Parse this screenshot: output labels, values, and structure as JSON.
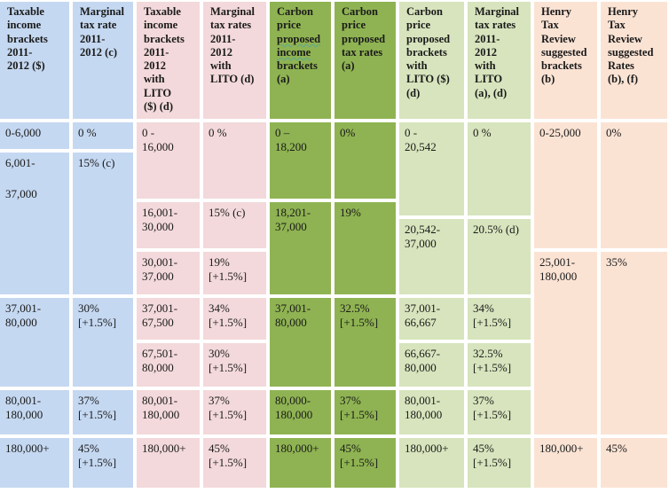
{
  "colors": {
    "blue": "#c5d8f1",
    "pink": "#f3d9db",
    "green_dark": "#8fb352",
    "green_light": "#d7e4bd",
    "peach": "#fbe3d4"
  },
  "headers": [
    [
      "Taxable",
      "income",
      "brackets",
      "2011-",
      "2012 ($)"
    ],
    [
      "Marginal",
      "tax rate",
      "2011-",
      "2012 (c)"
    ],
    [
      "Taxable",
      "income",
      "brackets",
      "2011-",
      "2012",
      "with",
      "LITO",
      "($) (d)"
    ],
    [
      "Marginal",
      "tax rates",
      "2011-",
      "2012",
      "with",
      "LITO (d)"
    ],
    [
      "Carbon",
      "price",
      "proposed",
      "income",
      "brackets",
      "(a)"
    ],
    [
      "Carbon",
      "price",
      "proposed",
      "tax rates",
      "(a)"
    ],
    [
      "Carbon",
      "price",
      "proposed",
      "brackets",
      "with",
      "LITO ($)",
      "(d)"
    ],
    [
      "Marginal",
      "tax rates",
      "2011-",
      "2012",
      "with",
      "LITO",
      "(a), (d)"
    ],
    [
      "Henry",
      "Tax",
      "Review",
      "suggested",
      "brackets",
      "(b)"
    ],
    [
      "Henry",
      "Tax",
      "Review",
      "suggested",
      "Rates",
      "(b), (f)"
    ]
  ],
  "cells": [
    {
      "c": 0,
      "r": [
        0,
        1
      ],
      "lines": [
        "0-6,000"
      ]
    },
    {
      "c": 0,
      "r": [
        1,
        4
      ],
      "lines": [
        "6,001-",
        "",
        "37,000"
      ]
    },
    {
      "c": 0,
      "r": [
        4,
        6
      ],
      "lines": [
        "37,001-",
        "80,000"
      ]
    },
    {
      "c": 0,
      "r": [
        6,
        7
      ],
      "lines": [
        "80,001-",
        "180,000"
      ]
    },
    {
      "c": 0,
      "r": [
        7,
        8
      ],
      "lines": [
        "180,000+"
      ]
    },
    {
      "c": 1,
      "r": [
        0,
        1
      ],
      "lines": [
        "0 %"
      ]
    },
    {
      "c": 1,
      "r": [
        1,
        4
      ],
      "lines": [
        "15% (c)"
      ]
    },
    {
      "c": 1,
      "r": [
        4,
        6
      ],
      "lines": [
        "30%",
        "[+1.5%]"
      ]
    },
    {
      "c": 1,
      "r": [
        6,
        7
      ],
      "lines": [
        "37%",
        "[+1.5%]"
      ]
    },
    {
      "c": 1,
      "r": [
        7,
        8
      ],
      "lines": [
        "45%",
        "[+1.5%]"
      ]
    },
    {
      "c": 2,
      "r": [
        0,
        2
      ],
      "lines": [
        "0 -",
        "16,000"
      ]
    },
    {
      "c": 2,
      "r": [
        2,
        3
      ],
      "lines": [
        "16,001-",
        "30,000"
      ]
    },
    {
      "c": 2,
      "r": [
        3,
        4
      ],
      "lines": [
        "30,001-",
        "37,000"
      ]
    },
    {
      "c": 2,
      "r": [
        4,
        5
      ],
      "lines": [
        "37,001-",
        "67,500"
      ]
    },
    {
      "c": 2,
      "r": [
        5,
        6
      ],
      "lines": [
        "67,501-",
        "80,000"
      ]
    },
    {
      "c": 2,
      "r": [
        6,
        7
      ],
      "lines": [
        "80,001-",
        "180,000"
      ]
    },
    {
      "c": 2,
      "r": [
        7,
        8
      ],
      "lines": [
        "180,000+"
      ]
    },
    {
      "c": 3,
      "r": [
        0,
        2
      ],
      "lines": [
        "0 %"
      ]
    },
    {
      "c": 3,
      "r": [
        2,
        3
      ],
      "lines": [
        "15% (c)"
      ]
    },
    {
      "c": 3,
      "r": [
        3,
        4
      ],
      "lines": [
        "19%",
        "[+1.5%]"
      ]
    },
    {
      "c": 3,
      "r": [
        4,
        5
      ],
      "lines": [
        "34%",
        "[+1.5%]"
      ]
    },
    {
      "c": 3,
      "r": [
        5,
        6
      ],
      "lines": [
        "30%",
        "[+1.5%]"
      ]
    },
    {
      "c": 3,
      "r": [
        6,
        7
      ],
      "lines": [
        "37%",
        "[+1.5%]"
      ]
    },
    {
      "c": 3,
      "r": [
        7,
        8
      ],
      "lines": [
        "45%",
        "[+1.5%]"
      ]
    },
    {
      "c": 4,
      "r": [
        0,
        2
      ],
      "lines": [
        "0      –",
        "18,200"
      ]
    },
    {
      "c": 4,
      "r": [
        2,
        4
      ],
      "lines": [
        "18,201-",
        "37,000"
      ]
    },
    {
      "c": 4,
      "r": [
        4,
        6
      ],
      "lines": [
        "37,001-",
        "80,000"
      ]
    },
    {
      "c": 4,
      "r": [
        6,
        7
      ],
      "lines": [
        "80,000-",
        "180,000"
      ]
    },
    {
      "c": 4,
      "r": [
        7,
        8
      ],
      "lines": [
        "180,000+"
      ]
    },
    {
      "c": 5,
      "r": [
        0,
        2
      ],
      "lines": [
        "0%"
      ]
    },
    {
      "c": 5,
      "r": [
        2,
        4
      ],
      "lines": [
        "19%"
      ]
    },
    {
      "c": 5,
      "r": [
        4,
        6
      ],
      "lines": [
        "32.5%",
        "[+1.5%]"
      ]
    },
    {
      "c": 5,
      "r": [
        6,
        7
      ],
      "lines": [
        "37%",
        "[+1.5%]"
      ]
    },
    {
      "c": 5,
      "r": [
        7,
        8
      ],
      "lines": [
        "45%",
        "[+1.5%]"
      ]
    },
    {
      "c": 6,
      "r": [
        0,
        "m"
      ],
      "lines": [
        "0 -",
        "20,542"
      ]
    },
    {
      "c": 6,
      "r": [
        "m",
        4
      ],
      "lines": [
        "20,542-",
        "37,000"
      ]
    },
    {
      "c": 6,
      "r": [
        4,
        5
      ],
      "lines": [
        "37,001-",
        "66,667"
      ]
    },
    {
      "c": 6,
      "r": [
        5,
        6
      ],
      "lines": [
        "66,667-",
        "80,000"
      ]
    },
    {
      "c": 6,
      "r": [
        6,
        7
      ],
      "lines": [
        "80,001-",
        "180,000"
      ]
    },
    {
      "c": 6,
      "r": [
        7,
        8
      ],
      "lines": [
        "180,000+"
      ]
    },
    {
      "c": 7,
      "r": [
        0,
        "m"
      ],
      "lines": [
        "0 %"
      ]
    },
    {
      "c": 7,
      "r": [
        "m",
        4
      ],
      "lines": [
        "20.5% (d)"
      ]
    },
    {
      "c": 7,
      "r": [
        4,
        5
      ],
      "lines": [
        "34%",
        "[+1.5%]"
      ]
    },
    {
      "c": 7,
      "r": [
        5,
        6
      ],
      "lines": [
        "32.5%",
        "[+1.5%]"
      ]
    },
    {
      "c": 7,
      "r": [
        6,
        7
      ],
      "lines": [
        "37%",
        "[+1.5%]"
      ]
    },
    {
      "c": 7,
      "r": [
        7,
        8
      ],
      "lines": [
        "45%",
        "[+1.5%]"
      ]
    },
    {
      "c": 8,
      "r": [
        0,
        3
      ],
      "lines": [
        "0-25,000"
      ]
    },
    {
      "c": 8,
      "r": [
        3,
        7
      ],
      "lines": [
        "25,001-",
        "180,000"
      ]
    },
    {
      "c": 8,
      "r": [
        7,
        8
      ],
      "lines": [
        "180,000+"
      ]
    },
    {
      "c": 9,
      "r": [
        0,
        3
      ],
      "lines": [
        "0%"
      ]
    },
    {
      "c": 9,
      "r": [
        3,
        7
      ],
      "lines": [
        "35%"
      ]
    },
    {
      "c": 9,
      "r": [
        7,
        8
      ],
      "lines": [
        "45%"
      ]
    }
  ]
}
